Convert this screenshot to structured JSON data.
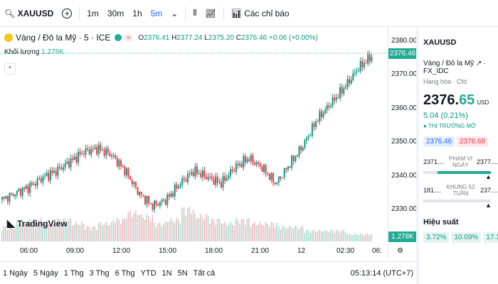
{
  "topbar": {
    "symbol": "XAUUSD",
    "intervals": [
      "1m",
      "30m",
      "1h",
      "5m"
    ],
    "indicators_label": "Các chỉ báo"
  },
  "legend": {
    "title": "Vàng / Đô la Mỹ · 5 · ICE",
    "o": "2376.41",
    "h": "2377.24",
    "l": "2375.20",
    "c": "2376.46",
    "change": "+0.06 (+0.00%)",
    "volume_label": "Khối lượng",
    "volume_value": "1.278K"
  },
  "logo_text": "TradingView",
  "price_ticks": [
    "2380.00",
    "2370.00",
    "2360.00",
    "2350.00",
    "2340.00",
    "2330.00"
  ],
  "current_price_tag": "2376.46",
  "volume_tag": "1.278K",
  "time_ticks": [
    "06:00",
    "09:00",
    "12:00",
    "15:00",
    "18:00",
    "21:00",
    "12",
    "02:30",
    "06:"
  ],
  "ranges": [
    "1 Ngày",
    "5 Ngày",
    "1 Thg",
    "3 Thg",
    "6 Thg",
    "YTD",
    "1N",
    "5N",
    "Tất cả"
  ],
  "clock": "05:13:14 (UTC+7)",
  "panel": {
    "symbol": "XAUUSD",
    "name": "Vàng / Đô la Mỹ",
    "exchange": "FX_IDC",
    "category": "Hàng hóa · Cfd",
    "price_main": "2376.",
    "price_dec": "65",
    "currency": "USD",
    "change": "5.04 (0.21%)",
    "market": "THỊ TRƯỜNG MỞ",
    "bid": "2376.46",
    "ask": "2376.68",
    "range_day_low": "2371....",
    "range_day_label": "PHẠM VI NGÀY",
    "range_day_high": "2377....",
    "range_52_low": "181....",
    "range_52_label": "KHUNG 52 TUẦN",
    "range_52_high": "237....",
    "perf_title": "Hiệu suất",
    "perf": [
      "3.72%",
      "10.09%",
      "17.11%"
    ]
  },
  "colors": {
    "up": "#089981",
    "down": "#f23645",
    "accent": "#2962ff"
  },
  "chart_data": {
    "type": "candlestick",
    "ylim": [
      2325,
      2382
    ],
    "x_ticks": [
      "06:00",
      "09:00",
      "12:00",
      "15:00",
      "18:00",
      "21:00",
      "12",
      "02:30"
    ],
    "close_path": [
      2331,
      2333,
      2335,
      2338,
      2340,
      2343,
      2346,
      2347,
      2345,
      2340,
      2333,
      2329,
      2331,
      2336,
      2340,
      2338,
      2336,
      2341,
      2344,
      2341,
      2336,
      2342,
      2348,
      2356,
      2361,
      2366,
      2372,
      2376
    ],
    "volume_rel": [
      0.4,
      0.5,
      0.6,
      0.5,
      0.6,
      0.5,
      0.4,
      0.5,
      0.6,
      0.8,
      0.7,
      0.5,
      0.6,
      0.9,
      0.7,
      0.6,
      0.5,
      0.6,
      0.5,
      0.5,
      0.4,
      0.4,
      0.3,
      0.3,
      0.3,
      0.2,
      0.2
    ]
  }
}
